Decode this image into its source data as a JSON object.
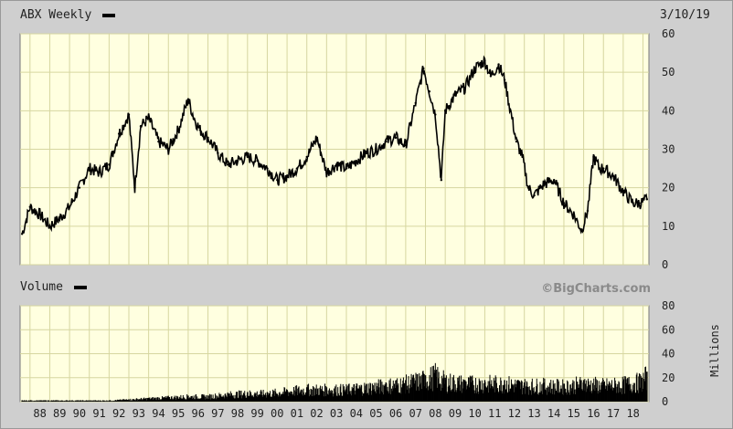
{
  "chart_data": [
    {
      "type": "line",
      "title": "ABX Weekly",
      "date": "3/10/19",
      "ylim": [
        0,
        60
      ],
      "yticks": [
        "0",
        "10",
        "20",
        "30",
        "40",
        "50",
        "60"
      ],
      "grid": true,
      "colors": {
        "line": "#000000",
        "plot_bg": "#ffffe0",
        "grid": "#d6d6a0"
      },
      "x": [
        1987.6,
        1988.0,
        1988.5,
        1989.0,
        1989.5,
        1990.0,
        1990.5,
        1991.0,
        1991.5,
        1992.0,
        1992.5,
        1993.0,
        1993.3,
        1993.6,
        1994.0,
        1994.5,
        1995.0,
        1995.5,
        1996.0,
        1996.3,
        1996.6,
        1997.0,
        1997.5,
        1998.0,
        1998.5,
        1999.0,
        1999.5,
        2000.0,
        2000.5,
        2001.0,
        2001.5,
        2002.0,
        2002.5,
        2003.0,
        2003.5,
        2004.0,
        2004.5,
        2005.0,
        2005.5,
        2006.0,
        2006.5,
        2007.0,
        2007.5,
        2007.9,
        2008.2,
        2008.5,
        2008.8,
        2009.0,
        2009.5,
        2010.0,
        2010.5,
        2011.0,
        2011.3,
        2011.7,
        2012.0,
        2012.3,
        2012.6,
        2012.9,
        2013.2,
        2013.5,
        2014.0,
        2014.5,
        2015.0,
        2015.5,
        2015.9,
        2016.2,
        2016.5,
        2016.8,
        2017.0,
        2017.5,
        2018.0,
        2018.5,
        2018.9,
        2019.2
      ],
      "values": [
        8,
        15,
        13,
        10,
        12,
        15,
        20,
        25,
        24,
        26,
        34,
        39,
        20,
        36,
        38,
        32,
        30,
        35,
        43,
        38,
        35,
        33,
        29,
        26,
        27,
        28,
        27,
        25,
        22,
        23,
        25,
        28,
        33,
        24,
        26,
        25,
        27,
        29,
        30,
        32,
        33,
        31,
        42,
        51,
        45,
        39,
        22,
        40,
        44,
        46,
        51,
        53,
        49,
        52,
        48,
        40,
        32,
        28,
        20,
        18,
        21,
        22,
        16,
        13,
        9,
        14,
        28,
        25,
        25,
        23,
        19,
        16,
        16,
        17
      ]
    },
    {
      "type": "bar",
      "title": "Volume",
      "ylabel": "Millions",
      "ylim": [
        0,
        80
      ],
      "yticks": [
        "0",
        "20",
        "40",
        "60",
        "80"
      ],
      "grid": true,
      "colors": {
        "bars": "#000000",
        "plot_bg": "#ffffe0",
        "grid": "#d6d6a0"
      },
      "x": [
        1987.6,
        1990.0,
        1992.0,
        1993.0,
        1994.0,
        1995.0,
        1996.0,
        1997.0,
        1998.0,
        1999.0,
        2000.0,
        2001.0,
        2002.0,
        2003.0,
        2004.0,
        2005.0,
        2006.0,
        2007.0,
        2008.0,
        2008.5,
        2009.0,
        2010.0,
        2011.0,
        2012.0,
        2013.0,
        2014.0,
        2015.0,
        2016.0,
        2017.0,
        2018.0,
        2018.9,
        2019.2
      ],
      "values": [
        1,
        1,
        1,
        2,
        3,
        4,
        5,
        5,
        7,
        8,
        8,
        10,
        12,
        12,
        12,
        14,
        16,
        18,
        22,
        26,
        20,
        18,
        18,
        18,
        16,
        16,
        15,
        18,
        16,
        17,
        20,
        25
      ],
      "xticks": [
        "88",
        "89",
        "90",
        "91",
        "92",
        "93",
        "94",
        "95",
        "96",
        "97",
        "98",
        "99",
        "00",
        "01",
        "02",
        "03",
        "04",
        "05",
        "06",
        "07",
        "08",
        "09",
        "10",
        "11",
        "12",
        "13",
        "14",
        "15",
        "16",
        "17",
        "18"
      ]
    }
  ],
  "watermark": "©BigCharts.com"
}
